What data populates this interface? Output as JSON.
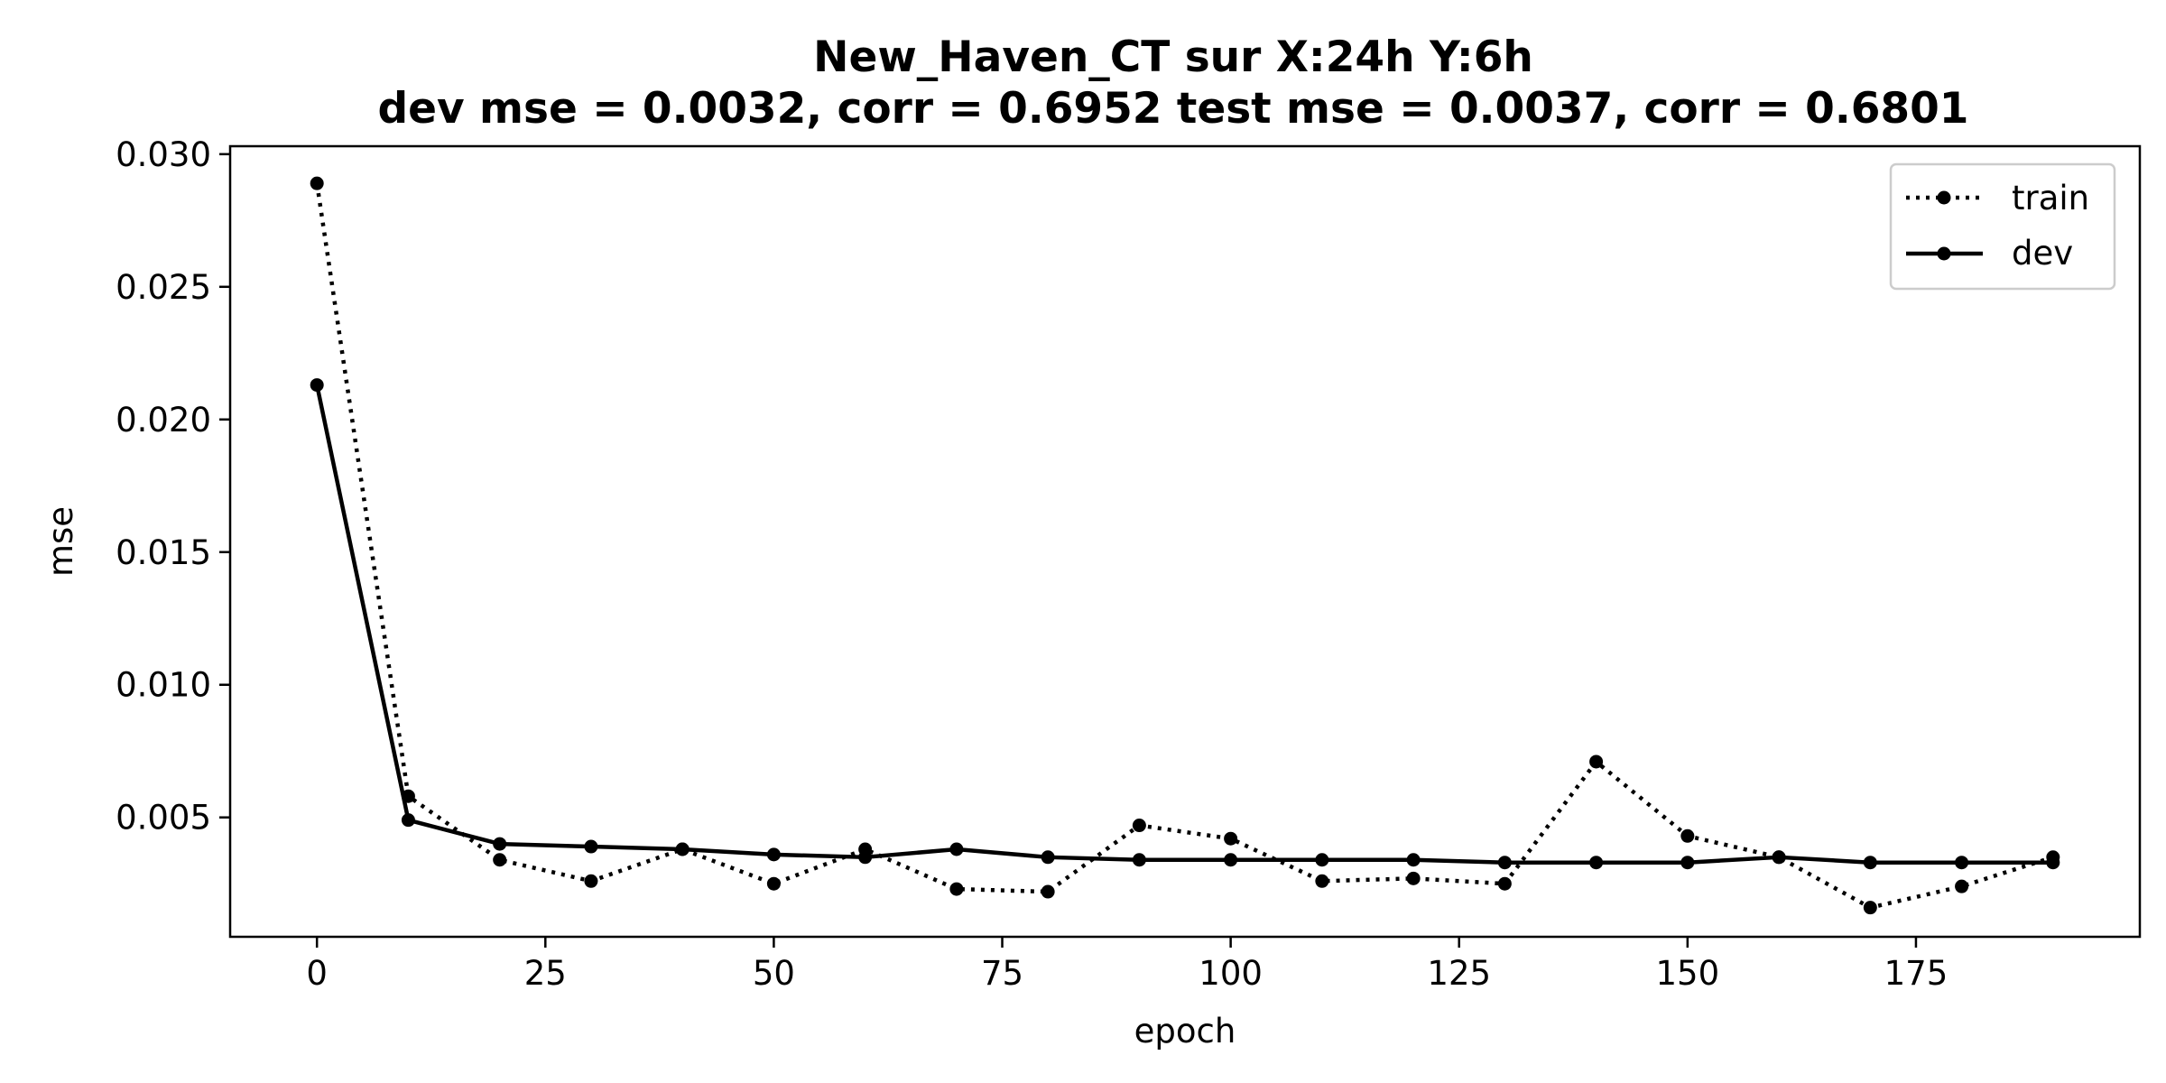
{
  "chart_data": {
    "type": "line",
    "title": "New_Haven_CT   sur   X:24h   Y:6h",
    "subtitle": "dev mse = 0.0032, corr = 0.6952   test mse = 0.0037, corr = 0.6801",
    "xlabel": "epoch",
    "ylabel": "mse",
    "xlim": [
      -9.5,
      199.5
    ],
    "ylim": [
      0.0005,
      0.0303
    ],
    "xticks": [
      0,
      25,
      50,
      75,
      100,
      125,
      150,
      175
    ],
    "xtick_labels": [
      "0",
      "25",
      "50",
      "75",
      "100",
      "125",
      "150",
      "175"
    ],
    "yticks": [
      0.005,
      0.01,
      0.015,
      0.02,
      0.025,
      0.03
    ],
    "ytick_labels": [
      "0.005",
      "0.010",
      "0.015",
      "0.020",
      "0.025",
      "0.030"
    ],
    "grid": false,
    "legend_position": "upper right",
    "x": [
      0,
      10,
      20,
      30,
      40,
      50,
      60,
      70,
      80,
      90,
      100,
      110,
      120,
      130,
      140,
      150,
      160,
      170,
      180,
      190
    ],
    "series": [
      {
        "name": "train",
        "style": "dotted",
        "color": "#000000",
        "values": [
          0.0289,
          0.0058,
          0.0034,
          0.0026,
          0.0038,
          0.0025,
          0.0038,
          0.0023,
          0.0022,
          0.0047,
          0.0042,
          0.0026,
          0.0027,
          0.0025,
          0.0071,
          0.0043,
          0.0035,
          0.0016,
          0.0024,
          0.0035
        ]
      },
      {
        "name": "dev",
        "style": "solid",
        "color": "#000000",
        "values": [
          0.0213,
          0.0049,
          0.004,
          0.0039,
          0.0038,
          0.0036,
          0.0035,
          0.0038,
          0.0035,
          0.0034,
          0.0034,
          0.0034,
          0.0034,
          0.0033,
          0.0033,
          0.0033,
          0.0035,
          0.0033,
          0.0033,
          0.0033
        ]
      }
    ]
  }
}
